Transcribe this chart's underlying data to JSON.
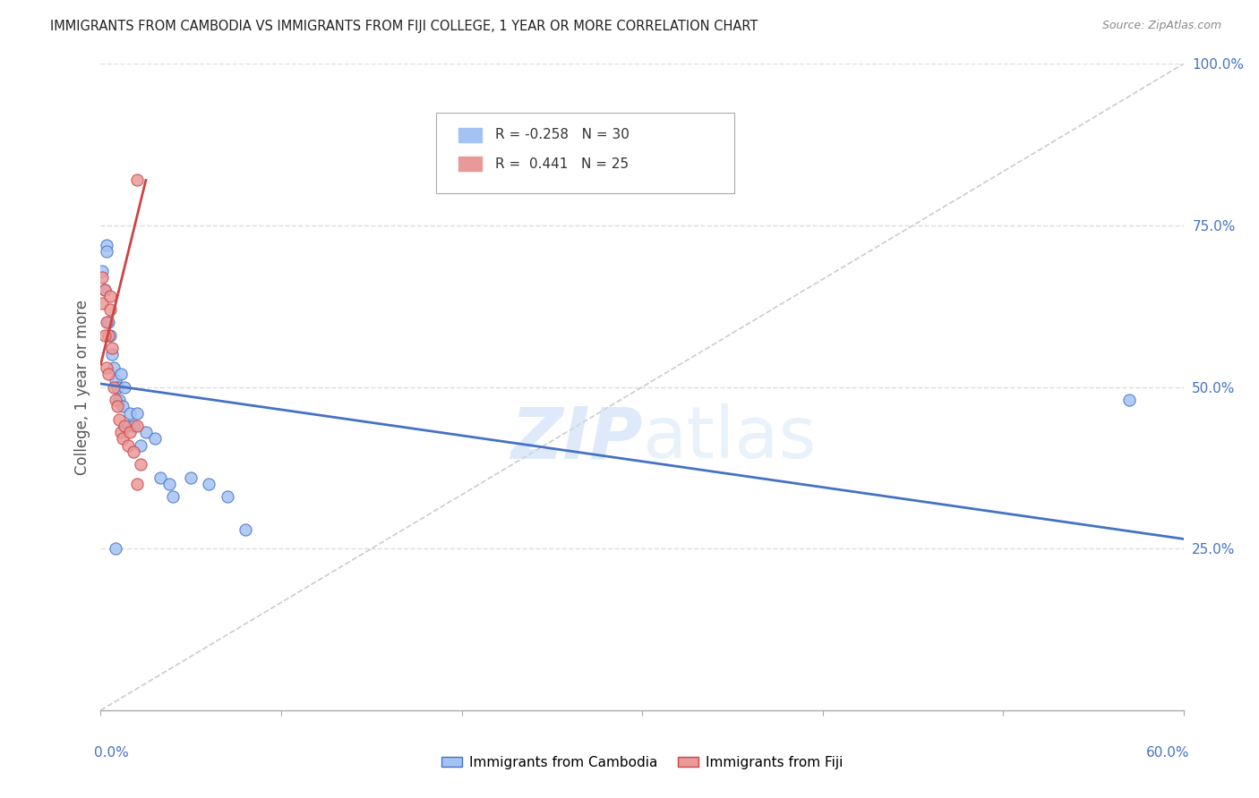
{
  "title": "IMMIGRANTS FROM CAMBODIA VS IMMIGRANTS FROM FIJI COLLEGE, 1 YEAR OR MORE CORRELATION CHART",
  "source": "Source: ZipAtlas.com",
  "ylabel": "College, 1 year or more",
  "ylabel_right_ticks": [
    "100.0%",
    "75.0%",
    "50.0%",
    "25.0%"
  ],
  "ylabel_right_vals": [
    1.0,
    0.75,
    0.5,
    0.25
  ],
  "xlim": [
    0.0,
    0.6
  ],
  "ylim": [
    0.0,
    1.1
  ],
  "plot_ylim": [
    0.0,
    1.0
  ],
  "cambodia_color": "#a4c2f4",
  "fiji_color": "#ea9999",
  "cambodia_R": -0.258,
  "cambodia_N": 30,
  "fiji_R": 0.441,
  "fiji_N": 25,
  "camb_x": [
    0.001,
    0.002,
    0.003,
    0.004,
    0.005,
    0.006,
    0.007,
    0.008,
    0.009,
    0.01,
    0.011,
    0.012,
    0.013,
    0.015,
    0.016,
    0.018,
    0.02,
    0.022,
    0.025,
    0.03,
    0.033,
    0.038,
    0.04,
    0.05,
    0.06,
    0.07,
    0.08,
    0.57,
    0.003,
    0.008
  ],
  "camb_y": [
    0.68,
    0.65,
    0.72,
    0.6,
    0.58,
    0.55,
    0.53,
    0.51,
    0.5,
    0.48,
    0.52,
    0.47,
    0.5,
    0.44,
    0.46,
    0.44,
    0.46,
    0.41,
    0.43,
    0.42,
    0.36,
    0.35,
    0.33,
    0.36,
    0.35,
    0.33,
    0.28,
    0.48,
    0.71,
    0.25
  ],
  "fiji_x": [
    0.001,
    0.002,
    0.003,
    0.004,
    0.005,
    0.006,
    0.007,
    0.008,
    0.009,
    0.01,
    0.011,
    0.012,
    0.013,
    0.015,
    0.016,
    0.018,
    0.02,
    0.022,
    0.001,
    0.002,
    0.003,
    0.004,
    0.005,
    0.02,
    0.02
  ],
  "fiji_y": [
    0.63,
    0.65,
    0.6,
    0.58,
    0.62,
    0.56,
    0.5,
    0.48,
    0.47,
    0.45,
    0.43,
    0.42,
    0.44,
    0.41,
    0.43,
    0.4,
    0.44,
    0.38,
    0.67,
    0.58,
    0.53,
    0.52,
    0.64,
    0.35,
    0.82
  ],
  "camb_trendline_x": [
    0.0,
    0.6
  ],
  "camb_trendline_y": [
    0.505,
    0.265
  ],
  "fiji_trendline_x": [
    0.0,
    0.025
  ],
  "fiji_trendline_y": [
    0.535,
    0.82
  ],
  "background_color": "#ffffff",
  "grid_color": "#dddddd",
  "trendline_cambodia_color": "#4472c4",
  "trendline_fiji_color": "#cc4444",
  "diag_color": "#cccccc",
  "xticks": [
    0.0,
    0.1,
    0.2,
    0.3,
    0.4,
    0.5,
    0.6
  ]
}
